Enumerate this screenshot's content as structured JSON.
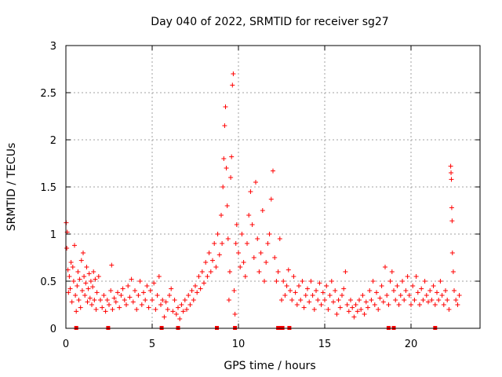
{
  "chart_data": {
    "type": "scatter",
    "title": "Day 040 of 2022, SRMTID for receiver sg27",
    "xlabel": "GPS time / hours",
    "ylabel": "SRMTID / TECUs",
    "xlim": [
      0,
      24
    ],
    "ylim": [
      0,
      3
    ],
    "grid": true,
    "marker": "+",
    "color": "#ff0000",
    "x_ticks": [
      0,
      5,
      10,
      15,
      20
    ],
    "x_tick_labels": [
      "0",
      "5",
      "10",
      "15",
      "20"
    ],
    "y_ticks": [
      0,
      0.5,
      1,
      1.5,
      2,
      2.5,
      3
    ],
    "y_tick_labels": [
      "0",
      "0.5",
      "1",
      "1.5",
      "2",
      "2.5",
      "3"
    ],
    "series": [
      {
        "name": "SRMTID",
        "points": [
          [
            0.02,
            1.12
          ],
          [
            0.05,
            0.85
          ],
          [
            0.08,
            1.02
          ],
          [
            0.12,
            0.62
          ],
          [
            0.15,
            0.38
          ],
          [
            0.2,
            0.55
          ],
          [
            0.25,
            0.42
          ],
          [
            0.3,
            0.7
          ],
          [
            0.35,
            0.28
          ],
          [
            0.4,
            0.65
          ],
          [
            0.45,
            0.5
          ],
          [
            0.5,
            0.88
          ],
          [
            0.55,
            0.35
          ],
          [
            0.6,
            0.18
          ],
          [
            0.65,
            0.45
          ],
          [
            0.7,
            0.6
          ],
          [
            0.75,
            0.3
          ],
          [
            0.8,
            0.52
          ],
          [
            0.85,
            0.22
          ],
          [
            0.9,
            0.72
          ],
          [
            0.95,
            0.4
          ],
          [
            1.0,
            0.8
          ],
          [
            1.05,
            0.55
          ],
          [
            1.1,
            0.35
          ],
          [
            1.15,
            0.48
          ],
          [
            1.2,
            0.65
          ],
          [
            1.25,
            0.28
          ],
          [
            1.3,
            0.42
          ],
          [
            1.35,
            0.58
          ],
          [
            1.4,
            0.32
          ],
          [
            1.45,
            0.5
          ],
          [
            1.5,
            0.25
          ],
          [
            1.55,
            0.44
          ],
          [
            1.6,
            0.6
          ],
          [
            1.65,
            0.3
          ],
          [
            1.7,
            0.52
          ],
          [
            1.75,
            0.2
          ],
          [
            1.8,
            0.38
          ],
          [
            1.9,
            0.55
          ],
          [
            2.0,
            0.3
          ],
          [
            2.1,
            0.22
          ],
          [
            2.2,
            0.35
          ],
          [
            2.3,
            0.18
          ],
          [
            2.4,
            0.3
          ],
          [
            2.5,
            0.25
          ],
          [
            2.6,
            0.4
          ],
          [
            2.65,
            0.67
          ],
          [
            2.7,
            0.2
          ],
          [
            2.8,
            0.32
          ],
          [
            2.9,
            0.28
          ],
          [
            3.0,
            0.38
          ],
          [
            3.1,
            0.22
          ],
          [
            3.2,
            0.35
          ],
          [
            3.3,
            0.42
          ],
          [
            3.4,
            0.3
          ],
          [
            3.5,
            0.25
          ],
          [
            3.6,
            0.45
          ],
          [
            3.7,
            0.33
          ],
          [
            3.8,
            0.52
          ],
          [
            3.9,
            0.28
          ],
          [
            4.0,
            0.4
          ],
          [
            4.1,
            0.2
          ],
          [
            4.2,
            0.35
          ],
          [
            4.3,
            0.5
          ],
          [
            4.4,
            0.25
          ],
          [
            4.5,
            0.38
          ],
          [
            4.6,
            0.3
          ],
          [
            4.7,
            0.45
          ],
          [
            4.8,
            0.22
          ],
          [
            4.9,
            0.4
          ],
          [
            5.0,
            0.3
          ],
          [
            5.1,
            0.48
          ],
          [
            5.2,
            0.2
          ],
          [
            5.3,
            0.35
          ],
          [
            5.4,
            0.55
          ],
          [
            5.5,
            0.25
          ],
          [
            5.6,
            0.3
          ],
          [
            5.7,
            0.12
          ],
          [
            5.8,
            0.28
          ],
          [
            5.9,
            0.2
          ],
          [
            6.0,
            0.35
          ],
          [
            6.1,
            0.42
          ],
          [
            6.2,
            0.18
          ],
          [
            6.3,
            0.3
          ],
          [
            6.4,
            0.15
          ],
          [
            6.5,
            0.22
          ],
          [
            6.6,
            0.1
          ],
          [
            6.7,
            0.25
          ],
          [
            6.8,
            0.18
          ],
          [
            6.9,
            0.3
          ],
          [
            7.0,
            0.2
          ],
          [
            7.1,
            0.35
          ],
          [
            7.2,
            0.25
          ],
          [
            7.3,
            0.4
          ],
          [
            7.4,
            0.3
          ],
          [
            7.5,
            0.45
          ],
          [
            7.6,
            0.38
          ],
          [
            7.7,
            0.55
          ],
          [
            7.8,
            0.42
          ],
          [
            7.9,
            0.6
          ],
          [
            8.0,
            0.48
          ],
          [
            8.1,
            0.7
          ],
          [
            8.2,
            0.55
          ],
          [
            8.3,
            0.8
          ],
          [
            8.4,
            0.6
          ],
          [
            8.5,
            0.72
          ],
          [
            8.6,
            0.9
          ],
          [
            8.7,
            0.65
          ],
          [
            8.8,
            1.0
          ],
          [
            8.9,
            0.78
          ],
          [
            9.0,
            1.2
          ],
          [
            9.05,
            0.9
          ],
          [
            9.1,
            1.5
          ],
          [
            9.15,
            1.8
          ],
          [
            9.2,
            2.15
          ],
          [
            9.25,
            2.35
          ],
          [
            9.3,
            1.7
          ],
          [
            9.35,
            1.3
          ],
          [
            9.4,
            0.95
          ],
          [
            9.45,
            0.3
          ],
          [
            9.5,
            0.6
          ],
          [
            9.55,
            1.6
          ],
          [
            9.6,
            1.82
          ],
          [
            9.65,
            2.58
          ],
          [
            9.7,
            2.7
          ],
          [
            9.75,
            0.4
          ],
          [
            9.8,
            0.15
          ],
          [
            9.85,
            0.9
          ],
          [
            9.9,
            1.1
          ],
          [
            10.0,
            0.8
          ],
          [
            10.1,
            0.65
          ],
          [
            10.2,
            1.0
          ],
          [
            10.3,
            0.7
          ],
          [
            10.4,
            0.55
          ],
          [
            10.5,
            0.9
          ],
          [
            10.6,
            1.2
          ],
          [
            10.7,
            1.45
          ],
          [
            10.8,
            1.1
          ],
          [
            10.9,
            0.75
          ],
          [
            11.0,
            1.55
          ],
          [
            11.1,
            0.95
          ],
          [
            11.2,
            0.6
          ],
          [
            11.3,
            0.8
          ],
          [
            11.4,
            1.25
          ],
          [
            11.5,
            0.5
          ],
          [
            11.6,
            0.7
          ],
          [
            11.7,
            0.9
          ],
          [
            11.8,
            1.0
          ],
          [
            11.9,
            1.37
          ],
          [
            12.0,
            1.67
          ],
          [
            12.1,
            0.75
          ],
          [
            12.2,
            0.5
          ],
          [
            12.3,
            0.6
          ],
          [
            12.4,
            0.95
          ],
          [
            12.5,
            0.3
          ],
          [
            12.6,
            0.5
          ],
          [
            12.7,
            0.35
          ],
          [
            12.8,
            0.45
          ],
          [
            12.9,
            0.62
          ],
          [
            13.0,
            0.4
          ],
          [
            13.1,
            0.3
          ],
          [
            13.2,
            0.55
          ],
          [
            13.3,
            0.38
          ],
          [
            13.4,
            0.25
          ],
          [
            13.5,
            0.45
          ],
          [
            13.6,
            0.3
          ],
          [
            13.7,
            0.5
          ],
          [
            13.8,
            0.22
          ],
          [
            13.9,
            0.35
          ],
          [
            14.0,
            0.42
          ],
          [
            14.1,
            0.28
          ],
          [
            14.2,
            0.5
          ],
          [
            14.3,
            0.35
          ],
          [
            14.4,
            0.2
          ],
          [
            14.5,
            0.4
          ],
          [
            14.6,
            0.3
          ],
          [
            14.7,
            0.48
          ],
          [
            14.8,
            0.25
          ],
          [
            14.9,
            0.38
          ],
          [
            15.0,
            0.3
          ],
          [
            15.1,
            0.45
          ],
          [
            15.2,
            0.2
          ],
          [
            15.3,
            0.35
          ],
          [
            15.4,
            0.5
          ],
          [
            15.5,
            0.28
          ],
          [
            15.6,
            0.4
          ],
          [
            15.7,
            0.15
          ],
          [
            15.8,
            0.3
          ],
          [
            15.9,
            0.22
          ],
          [
            16.0,
            0.35
          ],
          [
            16.1,
            0.42
          ],
          [
            16.2,
            0.6
          ],
          [
            16.3,
            0.25
          ],
          [
            16.4,
            0.18
          ],
          [
            16.5,
            0.3
          ],
          [
            16.6,
            0.22
          ],
          [
            16.7,
            0.12
          ],
          [
            16.8,
            0.25
          ],
          [
            16.9,
            0.18
          ],
          [
            17.0,
            0.3
          ],
          [
            17.1,
            0.2
          ],
          [
            17.2,
            0.35
          ],
          [
            17.3,
            0.15
          ],
          [
            17.4,
            0.28
          ],
          [
            17.5,
            0.22
          ],
          [
            17.6,
            0.4
          ],
          [
            17.7,
            0.3
          ],
          [
            17.8,
            0.5
          ],
          [
            17.9,
            0.25
          ],
          [
            18.0,
            0.38
          ],
          [
            18.1,
            0.2
          ],
          [
            18.2,
            0.32
          ],
          [
            18.3,
            0.45
          ],
          [
            18.4,
            0.28
          ],
          [
            18.5,
            0.65
          ],
          [
            18.6,
            0.35
          ],
          [
            18.7,
            0.25
          ],
          [
            18.8,
            0.5
          ],
          [
            18.9,
            0.6
          ],
          [
            19.0,
            0.4
          ],
          [
            19.1,
            0.3
          ],
          [
            19.2,
            0.45
          ],
          [
            19.3,
            0.25
          ],
          [
            19.4,
            0.35
          ],
          [
            19.5,
            0.5
          ],
          [
            19.6,
            0.3
          ],
          [
            19.7,
            0.4
          ],
          [
            19.8,
            0.55
          ],
          [
            19.9,
            0.35
          ],
          [
            20.0,
            0.25
          ],
          [
            20.1,
            0.45
          ],
          [
            20.2,
            0.3
          ],
          [
            20.3,
            0.55
          ],
          [
            20.4,
            0.38
          ],
          [
            20.5,
            0.25
          ],
          [
            20.6,
            0.42
          ],
          [
            20.7,
            0.3
          ],
          [
            20.8,
            0.5
          ],
          [
            20.9,
            0.35
          ],
          [
            21.0,
            0.28
          ],
          [
            21.1,
            0.4
          ],
          [
            21.2,
            0.3
          ],
          [
            21.3,
            0.45
          ],
          [
            21.4,
            0.25
          ],
          [
            21.5,
            0.38
          ],
          [
            21.6,
            0.3
          ],
          [
            21.7,
            0.5
          ],
          [
            21.8,
            0.35
          ],
          [
            21.9,
            0.25
          ],
          [
            22.0,
            0.4
          ],
          [
            22.1,
            0.3
          ],
          [
            22.2,
            0.2
          ],
          [
            22.3,
            1.72
          ],
          [
            22.32,
            1.65
          ],
          [
            22.34,
            1.58
          ],
          [
            22.36,
            1.28
          ],
          [
            22.38,
            1.14
          ],
          [
            22.4,
            0.8
          ],
          [
            22.45,
            0.6
          ],
          [
            22.5,
            0.4
          ],
          [
            22.6,
            0.3
          ],
          [
            22.7,
            0.25
          ],
          [
            22.8,
            0.35
          ]
        ]
      }
    ],
    "zero_markers_x": [
      0.6,
      2.45,
      5.55,
      6.5,
      8.75,
      9.8,
      12.3,
      12.45,
      12.55,
      12.95,
      18.7,
      19.0,
      21.4
    ]
  }
}
